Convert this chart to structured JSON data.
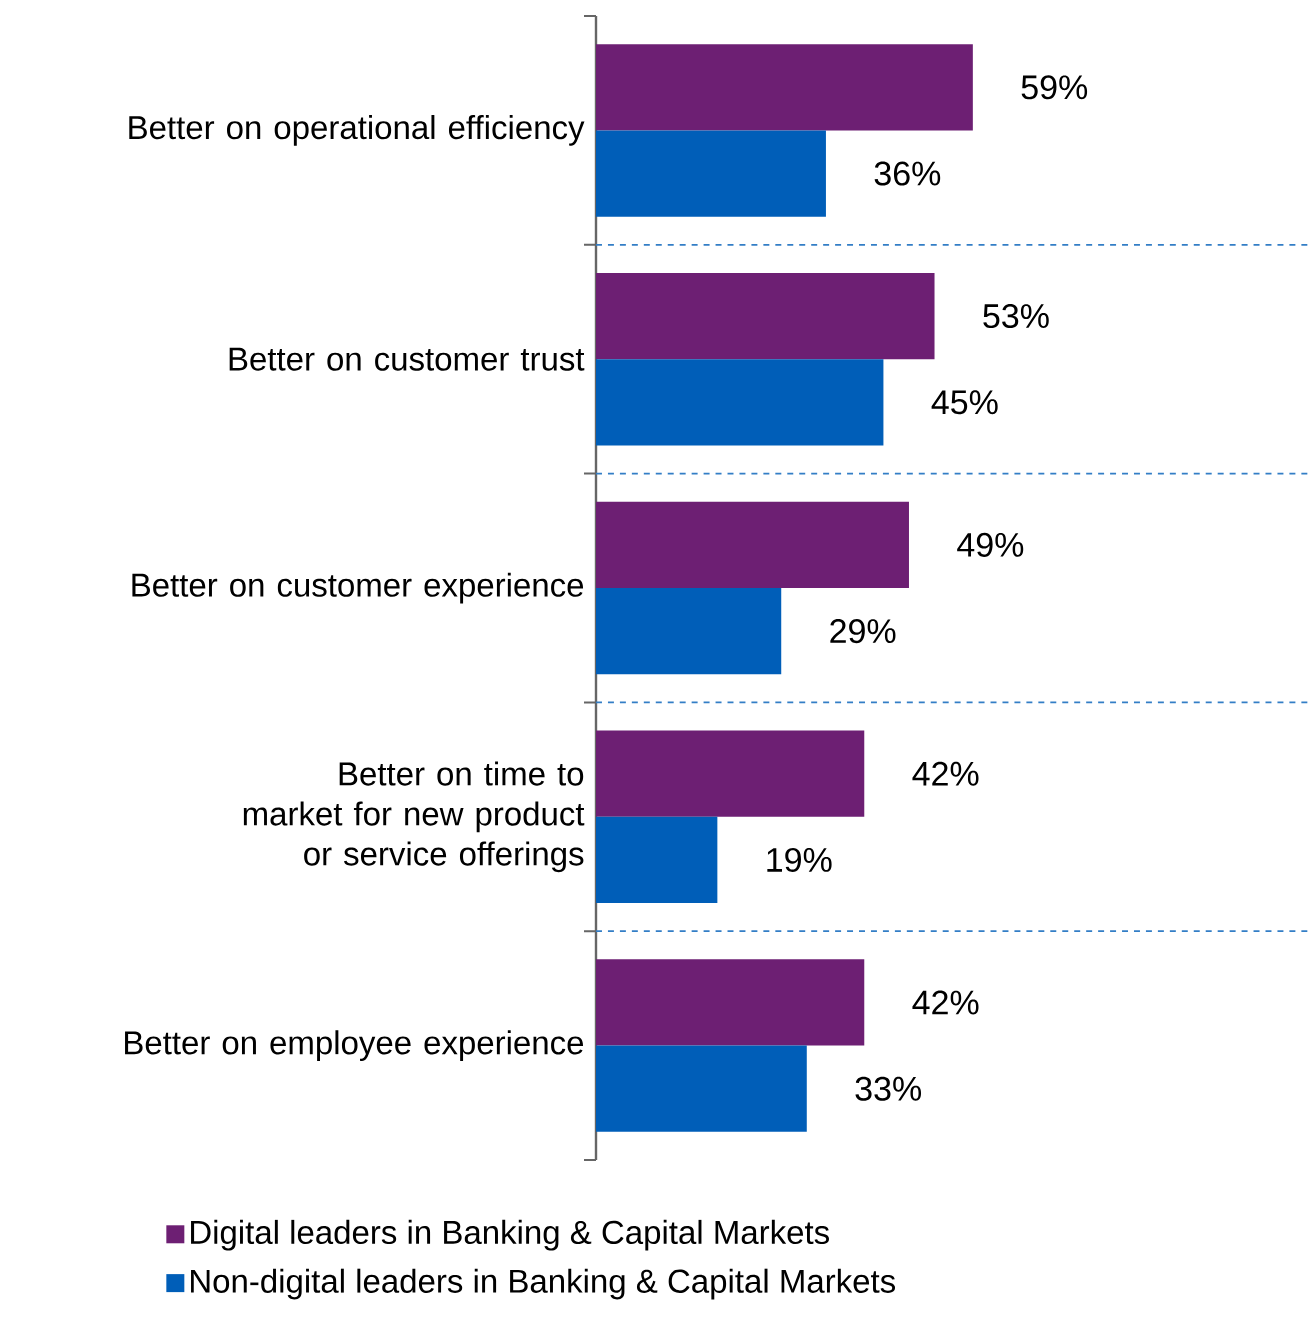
{
  "chart_data": {
    "type": "bar",
    "orientation": "horizontal",
    "grid": "y",
    "legend": "bottom",
    "categories": [
      "Better on operational efficiency",
      "Better on customer trust",
      "Better on customer experience",
      "Better on time to market for new product or service offerings",
      "Better on employee experience"
    ],
    "series": [
      {
        "name": "Digital leaders in Banking & Capital Markets",
        "color": "#6d1f73",
        "values": [
          59,
          53,
          49,
          42,
          42
        ],
        "value_labels": [
          "59%",
          "53%",
          "49%",
          "42%",
          "42%"
        ]
      },
      {
        "name": "Non-digital leaders in Banking & Capital Markets",
        "color": "#005eb8",
        "values": [
          36,
          45,
          29,
          19,
          33
        ],
        "value_labels": [
          "36%",
          "45%",
          "29%",
          "19%",
          "33%"
        ]
      }
    ]
  }
}
